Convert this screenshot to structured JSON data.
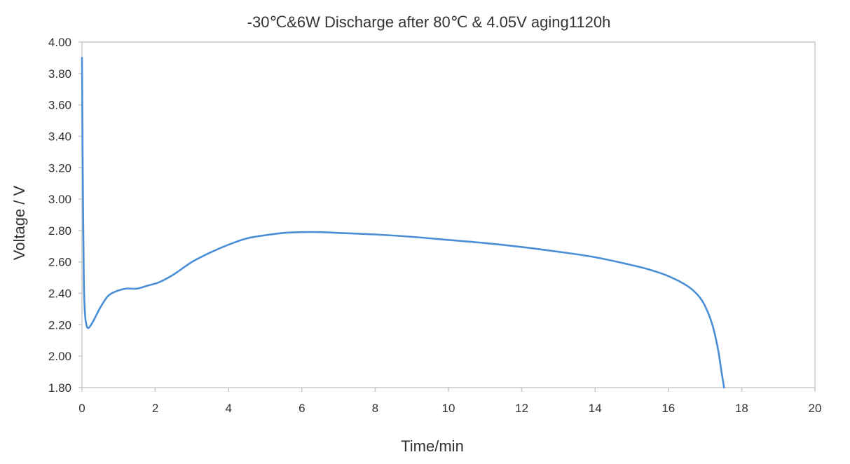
{
  "chart_data": {
    "type": "line",
    "title": "-30℃&6W Discharge after  80℃ & 4.05V aging1120h",
    "xlabel": "Time/min",
    "ylabel": "Voltage / V",
    "xlim": [
      0,
      20
    ],
    "ylim": [
      1.8,
      4.0
    ],
    "x_ticks": [
      "0",
      "2",
      "4",
      "6",
      "8",
      "10",
      "12",
      "14",
      "16",
      "18",
      "20"
    ],
    "y_ticks": [
      "1.80",
      "2.00",
      "2.20",
      "2.40",
      "2.60",
      "2.80",
      "3.00",
      "3.20",
      "3.40",
      "3.60",
      "3.80",
      "4.00"
    ],
    "grid": false,
    "legend": "none",
    "series": [
      {
        "color": "#4a8fd6",
        "points": [
          [
            0.0,
            3.9
          ],
          [
            0.02,
            3.2
          ],
          [
            0.05,
            2.5
          ],
          [
            0.08,
            2.28
          ],
          [
            0.12,
            2.2
          ],
          [
            0.18,
            2.18
          ],
          [
            0.3,
            2.22
          ],
          [
            0.5,
            2.31
          ],
          [
            0.7,
            2.38
          ],
          [
            0.9,
            2.41
          ],
          [
            1.2,
            2.43
          ],
          [
            1.5,
            2.43
          ],
          [
            1.8,
            2.45
          ],
          [
            2.1,
            2.47
          ],
          [
            2.5,
            2.52
          ],
          [
            3.0,
            2.6
          ],
          [
            3.5,
            2.66
          ],
          [
            4.0,
            2.71
          ],
          [
            4.5,
            2.75
          ],
          [
            5.0,
            2.77
          ],
          [
            5.5,
            2.785
          ],
          [
            6.0,
            2.79
          ],
          [
            6.5,
            2.79
          ],
          [
            7.0,
            2.785
          ],
          [
            8.0,
            2.775
          ],
          [
            9.0,
            2.76
          ],
          [
            10.0,
            2.74
          ],
          [
            11.0,
            2.72
          ],
          [
            12.0,
            2.695
          ],
          [
            13.0,
            2.665
          ],
          [
            14.0,
            2.63
          ],
          [
            15.0,
            2.58
          ],
          [
            15.5,
            2.55
          ],
          [
            16.0,
            2.51
          ],
          [
            16.5,
            2.45
          ],
          [
            16.8,
            2.39
          ],
          [
            17.0,
            2.32
          ],
          [
            17.2,
            2.2
          ],
          [
            17.35,
            2.05
          ],
          [
            17.45,
            1.9
          ],
          [
            17.52,
            1.8
          ]
        ]
      }
    ]
  }
}
